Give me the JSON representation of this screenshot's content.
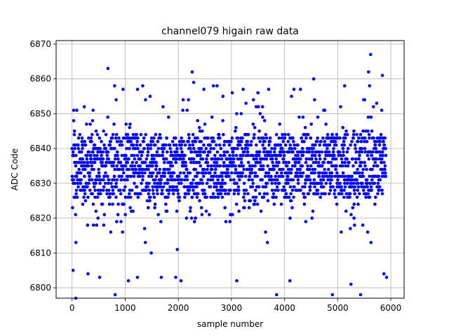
{
  "chart_data": {
    "type": "scatter",
    "title": "channel079 higain raw data",
    "xlabel": "sample number",
    "ylabel": "ADC Code",
    "xlim": [
      -300,
      6250
    ],
    "ylim": [
      6797,
      6871
    ],
    "xticks": [
      0,
      1000,
      2000,
      3000,
      4000,
      5000,
      6000
    ],
    "yticks": [
      6800,
      6810,
      6820,
      6830,
      6840,
      6850,
      6860,
      6870
    ],
    "grid": true,
    "marker_color": "#0000ff",
    "series": [
      {
        "n_points": 5910,
        "baseline": 6834,
        "core_range": [
          6826,
          6844
        ],
        "total_range": [
          6797,
          6867
        ],
        "outliers": [
          {
            "x": 70,
            "y": 6797
          },
          {
            "x": 30,
            "y": 6851
          },
          {
            "x": 20,
            "y": 6805
          },
          {
            "x": 230,
            "y": 6852
          },
          {
            "x": 300,
            "y": 6804
          },
          {
            "x": 520,
            "y": 6803
          },
          {
            "x": 800,
            "y": 6858
          },
          {
            "x": 810,
            "y": 6798
          },
          {
            "x": 830,
            "y": 6854
          },
          {
            "x": 1060,
            "y": 6802
          },
          {
            "x": 1230,
            "y": 6803
          },
          {
            "x": 1330,
            "y": 6858
          },
          {
            "x": 1470,
            "y": 6855
          },
          {
            "x": 1680,
            "y": 6803
          },
          {
            "x": 1950,
            "y": 6803
          },
          {
            "x": 2050,
            "y": 6802
          },
          {
            "x": 2190,
            "y": 6854
          },
          {
            "x": 2260,
            "y": 6862
          },
          {
            "x": 2290,
            "y": 6859
          },
          {
            "x": 2730,
            "y": 6858
          },
          {
            "x": 2840,
            "y": 6855
          },
          {
            "x": 3100,
            "y": 6802
          },
          {
            "x": 3220,
            "y": 6857
          },
          {
            "x": 3700,
            "y": 6857
          },
          {
            "x": 3850,
            "y": 6798
          },
          {
            "x": 4100,
            "y": 6802
          },
          {
            "x": 4130,
            "y": 6855
          },
          {
            "x": 4300,
            "y": 6857
          },
          {
            "x": 4900,
            "y": 6798
          },
          {
            "x": 5130,
            "y": 6858
          },
          {
            "x": 5250,
            "y": 6801
          },
          {
            "x": 5430,
            "y": 6798
          },
          {
            "x": 5580,
            "y": 6862
          },
          {
            "x": 5600,
            "y": 6858
          },
          {
            "x": 5620,
            "y": 6867
          },
          {
            "x": 5840,
            "y": 6861
          },
          {
            "x": 5870,
            "y": 6804
          },
          {
            "x": 5920,
            "y": 6803
          }
        ]
      }
    ]
  }
}
